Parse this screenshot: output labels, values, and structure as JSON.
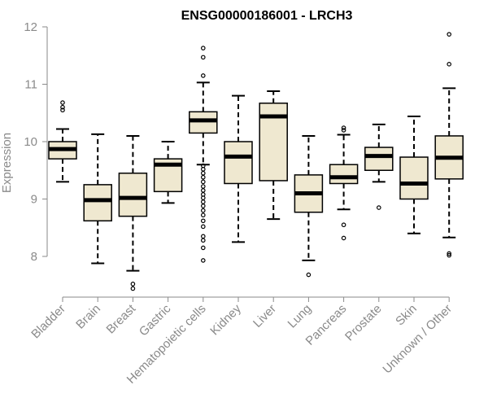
{
  "chart_data": {
    "type": "boxplot",
    "title": "ENSG00000186001 - LRCH3",
    "ylabel": "Expression",
    "xlabel": "",
    "ylim": [
      7.3,
      12.0
    ],
    "yticks": [
      8,
      9,
      10,
      11,
      12
    ],
    "box_color": "#efe8d0",
    "categories": [
      "Bladder",
      "Brain",
      "Breast",
      "Gastric",
      "Hematopoietic cells",
      "Kidney",
      "Liver",
      "Lung",
      "Pancreas",
      "Prostate",
      "Skin",
      "Unknown / Other"
    ],
    "boxes": [
      {
        "name": "Bladder",
        "whisker_low": 9.3,
        "q1": 9.7,
        "median": 9.87,
        "q3": 10.0,
        "whisker_high": 10.22,
        "outliers": [
          10.55,
          10.6,
          10.68
        ]
      },
      {
        "name": "Brain",
        "whisker_low": 7.88,
        "q1": 8.62,
        "median": 8.98,
        "q3": 9.25,
        "whisker_high": 10.13,
        "outliers": []
      },
      {
        "name": "Breast",
        "whisker_low": 7.75,
        "q1": 8.7,
        "median": 9.02,
        "q3": 9.45,
        "whisker_high": 10.1,
        "outliers": [
          7.44,
          7.52
        ]
      },
      {
        "name": "Gastric",
        "whisker_low": 8.93,
        "q1": 9.13,
        "median": 9.6,
        "q3": 9.7,
        "whisker_high": 10.0,
        "outliers": []
      },
      {
        "name": "Hematopoietic cells",
        "whisker_low": 9.6,
        "q1": 10.15,
        "median": 10.37,
        "q3": 10.52,
        "whisker_high": 11.03,
        "outliers": [
          11.15,
          11.47,
          11.63,
          9.58,
          9.52,
          9.45,
          9.38,
          9.3,
          9.22,
          9.15,
          9.08,
          9.02,
          8.95,
          8.88,
          8.8,
          8.72,
          8.62,
          8.52,
          8.35,
          8.28,
          8.15,
          7.93
        ]
      },
      {
        "name": "Kidney",
        "whisker_low": 8.25,
        "q1": 9.27,
        "median": 9.74,
        "q3": 10.0,
        "whisker_high": 10.8,
        "outliers": []
      },
      {
        "name": "Liver",
        "whisker_low": 8.65,
        "q1": 9.32,
        "median": 10.44,
        "q3": 10.67,
        "whisker_high": 10.88,
        "outliers": []
      },
      {
        "name": "Lung",
        "whisker_low": 7.93,
        "q1": 8.77,
        "median": 9.1,
        "q3": 9.42,
        "whisker_high": 10.1,
        "outliers": [
          7.68
        ]
      },
      {
        "name": "Pancreas",
        "whisker_low": 8.82,
        "q1": 9.27,
        "median": 9.38,
        "q3": 9.6,
        "whisker_high": 10.12,
        "outliers": [
          10.2,
          10.24,
          8.55,
          8.32
        ]
      },
      {
        "name": "Prostate",
        "whisker_low": 9.3,
        "q1": 9.5,
        "median": 9.75,
        "q3": 9.9,
        "whisker_high": 10.3,
        "outliers": [
          8.85
        ]
      },
      {
        "name": "Skin",
        "whisker_low": 8.4,
        "q1": 9.0,
        "median": 9.27,
        "q3": 9.73,
        "whisker_high": 10.44,
        "outliers": []
      },
      {
        "name": "Unknown / Other",
        "whisker_low": 8.33,
        "q1": 9.35,
        "median": 9.72,
        "q3": 10.1,
        "whisker_high": 10.93,
        "outliers": [
          11.87,
          11.35,
          8.05,
          8.02
        ]
      }
    ]
  }
}
